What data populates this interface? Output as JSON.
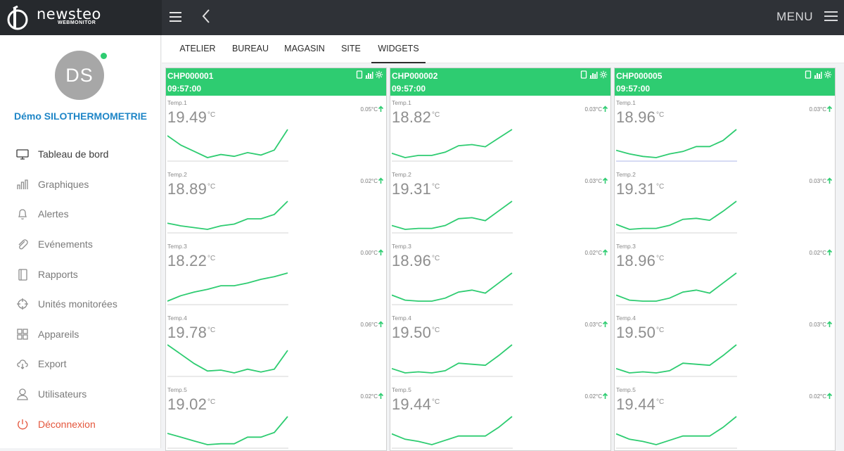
{
  "app": {
    "brand_name": "newsteo",
    "brand_sub": "WEBMONITOR",
    "menu_label": "MENU"
  },
  "user": {
    "initials": "DS",
    "name": "Démo SILOTHERMOMETRIE",
    "online": true
  },
  "nav": [
    {
      "label": "Tableau de bord",
      "icon": "monitor-icon",
      "active": true
    },
    {
      "label": "Graphiques",
      "icon": "bar-chart-icon"
    },
    {
      "label": "Alertes",
      "icon": "bell-icon"
    },
    {
      "label": "Evénements",
      "icon": "paperclip-icon"
    },
    {
      "label": "Rapports",
      "icon": "book-icon"
    },
    {
      "label": "Unités monitorées",
      "icon": "crosshair-icon"
    },
    {
      "label": "Appareils",
      "icon": "grid-icon"
    },
    {
      "label": "Export",
      "icon": "cloud-download-icon"
    },
    {
      "label": "Utilisateurs",
      "icon": "user-icon"
    },
    {
      "label": "Déconnexion",
      "icon": "power-icon",
      "logout": true
    }
  ],
  "tabs": [
    {
      "label": "ATELIER"
    },
    {
      "label": "BUREAU"
    },
    {
      "label": "MAGASIN"
    },
    {
      "label": "SITE"
    },
    {
      "label": "WIDGETS",
      "active": true
    }
  ],
  "colors": {
    "accent": "#2ecc71",
    "topbar": "#2f3237",
    "link": "#1f86c7",
    "logout": "#e4563c",
    "baseline_hl": "#c9cdf0"
  },
  "widgets": [
    {
      "id": "CHP000001",
      "time": "09:57:00",
      "sensors": [
        {
          "name": "Temp.1",
          "value": "19.49",
          "unit": "°C",
          "delta": "0.05°C",
          "series": [
            18.95,
            18.8,
            18.7,
            18.6,
            18.65,
            18.62,
            18.68,
            18.64,
            18.72,
            19.05
          ]
        },
        {
          "name": "Temp.2",
          "value": "18.89",
          "unit": "°C",
          "delta": "0.02°C",
          "series": [
            18.6,
            18.57,
            18.55,
            18.53,
            18.57,
            18.59,
            18.65,
            18.65,
            18.7,
            18.85
          ]
        },
        {
          "name": "Temp.3",
          "value": "18.22",
          "unit": "°C",
          "delta": "0.00°C",
          "series": [
            17.9,
            17.96,
            18.0,
            18.03,
            18.07,
            18.07,
            18.1,
            18.14,
            18.17,
            18.21
          ]
        },
        {
          "name": "Temp.4",
          "value": "19.78",
          "unit": "°C",
          "delta": "0.06°C",
          "series": [
            19.5,
            19.4,
            19.3,
            19.22,
            19.23,
            19.2,
            19.24,
            19.21,
            19.24,
            19.44
          ]
        },
        {
          "name": "Temp.5",
          "value": "19.02",
          "unit": "°C",
          "delta": "0.02°C",
          "series": [
            18.62,
            18.58,
            18.54,
            18.5,
            18.51,
            18.51,
            18.58,
            18.58,
            18.63,
            18.8
          ]
        }
      ]
    },
    {
      "id": "CHP000002",
      "time": "09:57:00",
      "sensors": [
        {
          "name": "Temp.1",
          "value": "18.82",
          "unit": "°C",
          "delta": "0.03°C",
          "series": [
            18.4,
            18.36,
            18.38,
            18.38,
            18.41,
            18.47,
            18.48,
            18.46,
            18.54,
            18.62
          ]
        },
        {
          "name": "Temp.2",
          "value": "19.31",
          "unit": "°C",
          "delta": "0.03°C",
          "series": [
            18.95,
            18.91,
            18.92,
            18.92,
            18.95,
            19.02,
            19.03,
            19.0,
            19.1,
            19.2
          ]
        },
        {
          "name": "Temp.3",
          "value": "18.96",
          "unit": "°C",
          "delta": "0.02°C",
          "series": [
            18.6,
            18.55,
            18.54,
            18.54,
            18.57,
            18.63,
            18.65,
            18.62,
            18.72,
            18.82
          ]
        },
        {
          "name": "Temp.4",
          "value": "19.50",
          "unit": "°C",
          "delta": "0.03°C",
          "series": [
            19.13,
            19.09,
            19.1,
            19.09,
            19.11,
            19.18,
            19.17,
            19.16,
            19.25,
            19.35
          ]
        },
        {
          "name": "Temp.5",
          "value": "19.44",
          "unit": "°C",
          "delta": "0.02°C",
          "series": [
            19.12,
            19.07,
            19.05,
            19.02,
            19.06,
            19.1,
            19.1,
            19.1,
            19.18,
            19.28
          ]
        }
      ]
    },
    {
      "id": "CHP000005",
      "time": "09:57:00",
      "sensors": [
        {
          "name": "Temp.1",
          "value": "18.96",
          "unit": "°C",
          "delta": "0.03°C",
          "series": [
            18.58,
            18.55,
            18.53,
            18.52,
            18.55,
            18.57,
            18.61,
            18.61,
            18.66,
            18.75
          ],
          "baseline_highlight": true
        },
        {
          "name": "Temp.2",
          "value": "19.31",
          "unit": "°C",
          "delta": "0.03°C",
          "series": [
            18.95,
            18.9,
            18.91,
            18.91,
            18.94,
            19.0,
            19.01,
            18.99,
            19.08,
            19.18
          ]
        },
        {
          "name": "Temp.3",
          "value": "18.96",
          "unit": "°C",
          "delta": "0.02°C",
          "series": [
            18.6,
            18.55,
            18.54,
            18.54,
            18.57,
            18.63,
            18.65,
            18.62,
            18.72,
            18.82
          ]
        },
        {
          "name": "Temp.4",
          "value": "19.50",
          "unit": "°C",
          "delta": "0.03°C",
          "series": [
            19.13,
            19.09,
            19.1,
            19.09,
            19.11,
            19.18,
            19.17,
            19.16,
            19.25,
            19.35
          ]
        },
        {
          "name": "Temp.5",
          "value": "19.44",
          "unit": "°C",
          "delta": "0.02°C",
          "series": [
            19.12,
            19.07,
            19.05,
            19.02,
            19.06,
            19.1,
            19.1,
            19.1,
            19.18,
            19.28
          ]
        }
      ]
    }
  ]
}
